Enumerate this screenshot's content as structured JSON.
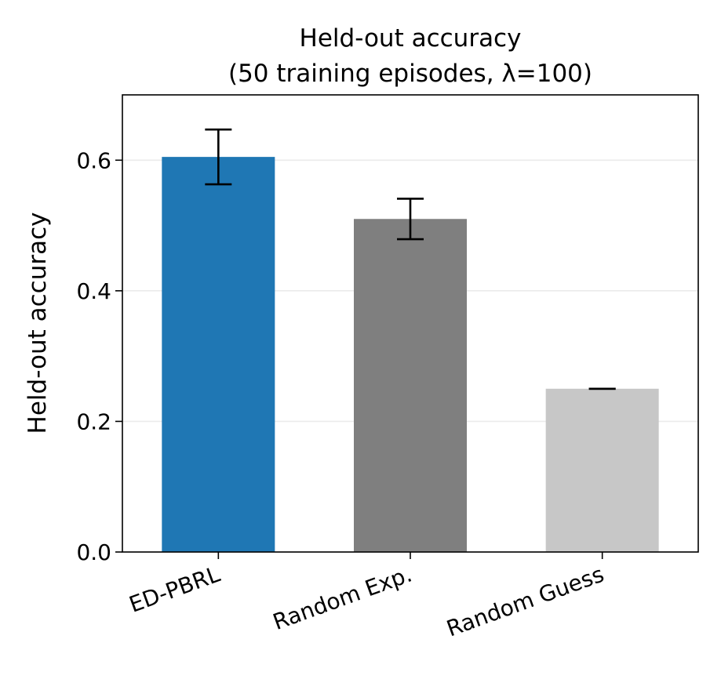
{
  "chart_data": {
    "type": "bar",
    "title_line1": "Held-out accuracy",
    "title_line2": "(50 training episodes, λ=100)",
    "xlabel": "",
    "ylabel": "Held-out accuracy",
    "categories": [
      "ED-PBRL",
      "Random Exp.",
      "Random Guess"
    ],
    "values": [
      0.605,
      0.51,
      0.25
    ],
    "errors": [
      0.042,
      0.031,
      0.0
    ],
    "colors": [
      "#1f77b4",
      "#7f7f7f",
      "#c7c7c7"
    ],
    "ylim": [
      0,
      0.7
    ],
    "yticks": [
      "0.0",
      "0.2",
      "0.4",
      "0.6"
    ],
    "grid": "horizontal"
  }
}
